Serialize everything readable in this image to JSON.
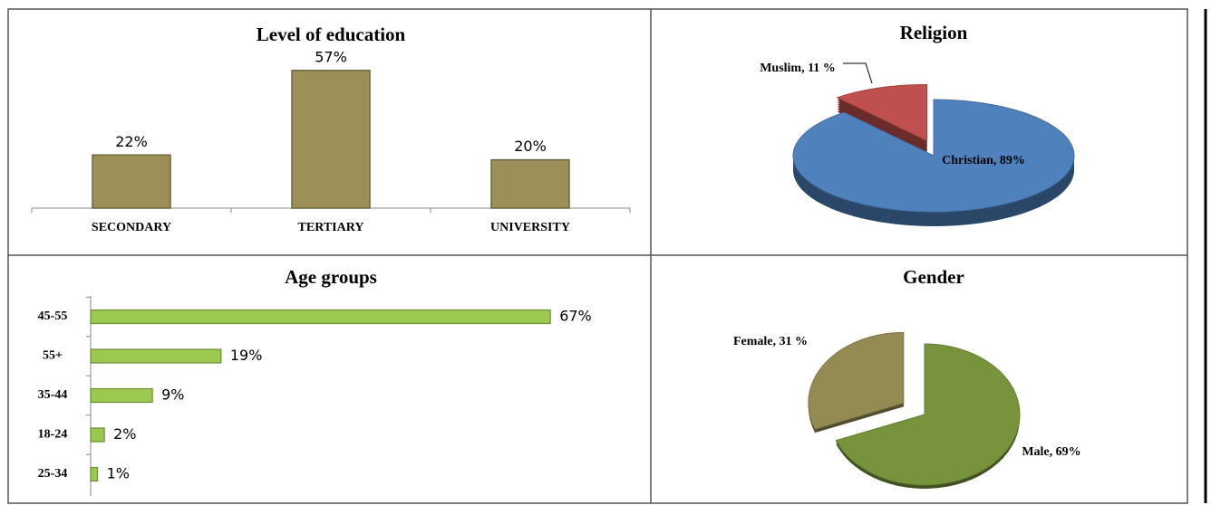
{
  "chart_data": [
    {
      "type": "bar",
      "title": "Level of education",
      "categories": [
        "SECONDARY",
        "TERTIARY",
        "UNIVERSITY"
      ],
      "values": [
        22,
        57,
        20
      ],
      "value_labels": [
        "22%",
        "57%",
        "20%"
      ],
      "color": "#9c9058"
    },
    {
      "type": "pie",
      "title": "Religion",
      "values": [
        89,
        11
      ],
      "value_labels": [
        "Christian, 89%",
        "Muslim, 11 %"
      ],
      "colors": [
        "#4f81bd",
        "#c0504d"
      ]
    },
    {
      "type": "hbar",
      "title": "Age groups",
      "categories": [
        "45-55",
        "55+",
        "35-44",
        "18-24",
        "25-34"
      ],
      "values": [
        67,
        19,
        9,
        2,
        1
      ],
      "value_labels": [
        "67%",
        "19%",
        "9%",
        "2%",
        "1%"
      ],
      "color": "#9bc94f"
    },
    {
      "type": "pie",
      "title": "Gender",
      "values": [
        69,
        31
      ],
      "value_labels": [
        "Male, 69%",
        "Female, 31 %"
      ],
      "colors": [
        "#77933c",
        "#948a54"
      ]
    }
  ]
}
